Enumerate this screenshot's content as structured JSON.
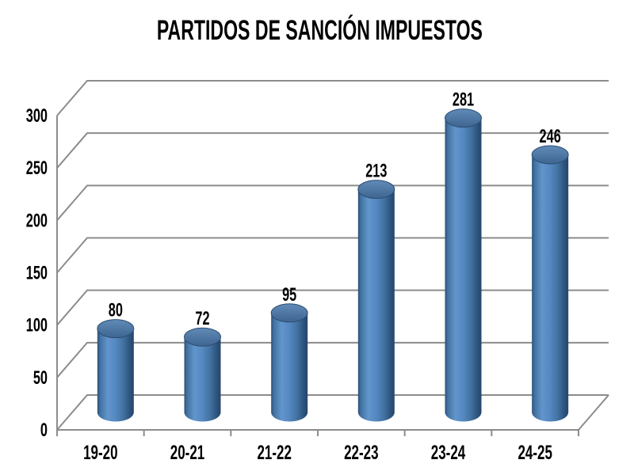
{
  "chart_data": {
    "type": "bar",
    "subtype": "3d-cylinder",
    "title": "PARTIDOS DE SANCIÓN IMPUESTOS",
    "categories": [
      "19-20",
      "20-21",
      "21-22",
      "22-23",
      "23-24",
      "24-25"
    ],
    "values": [
      80,
      72,
      95,
      213,
      281,
      246
    ],
    "xlabel": "",
    "ylabel": "",
    "ylim": [
      0,
      300
    ],
    "y_ticks": [
      0,
      50,
      100,
      150,
      200,
      250,
      300
    ],
    "grid": true,
    "legend": false,
    "data_labels": true,
    "colors": {
      "background": "#ffffff",
      "text": "#000000",
      "gridline": "#8c8c8c",
      "bar_fill": "#4f81bd",
      "bar_highlight": "#6195cb",
      "bar_edge_dark": "#24466b",
      "bar_top_fill": "#4a74a1",
      "bar_top_outline": "#2b4c70"
    }
  }
}
